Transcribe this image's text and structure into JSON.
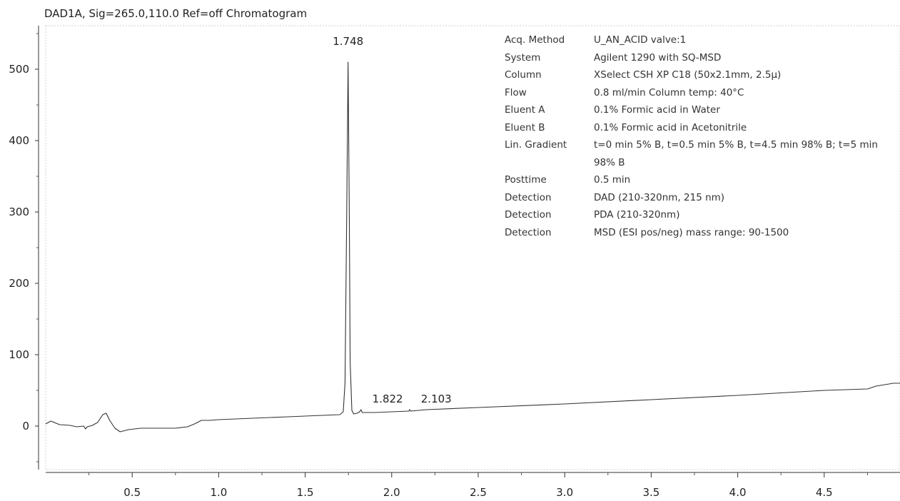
{
  "chart_data": {
    "type": "line",
    "title": "DAD1A, Sig=265.0,110.0  Ref=off Chromatogram",
    "xlabel": "",
    "ylabel": "",
    "xlim": [
      0,
      4.95
    ],
    "ylim": [
      -60,
      560
    ],
    "x_ticks": [
      "0.5",
      "1.0",
      "1.5",
      "2.0",
      "2.5",
      "3.0",
      "3.5",
      "4.0",
      "4.5"
    ],
    "y_ticks": [
      "0",
      "100",
      "200",
      "300",
      "400",
      "500"
    ],
    "peak_labels": [
      "1.748",
      "1.822",
      "2.103"
    ],
    "series": [
      {
        "x": [
          0.0,
          0.03,
          0.08,
          0.14,
          0.18,
          0.22,
          0.23,
          0.24,
          0.27,
          0.3,
          0.33,
          0.35,
          0.37,
          0.4,
          0.43,
          0.48,
          0.55,
          0.65,
          0.75,
          0.82,
          0.86,
          0.9,
          0.95,
          1.0,
          1.2,
          1.4,
          1.6,
          1.7,
          1.72,
          1.73,
          1.74,
          1.748,
          1.755,
          1.76,
          1.77,
          1.78,
          1.8,
          1.815,
          1.822,
          1.83,
          1.85,
          1.9,
          2.0,
          2.1,
          2.103,
          2.11,
          2.2,
          2.5,
          3.0,
          3.5,
          4.0,
          4.5,
          4.75,
          4.8,
          4.85,
          4.9,
          4.95
        ],
        "y": [
          3,
          7,
          2,
          1,
          -1,
          0,
          -4,
          -1,
          1,
          5,
          16,
          18,
          8,
          -3,
          -8,
          -5,
          -3,
          -3,
          -3,
          -1,
          3,
          8,
          8,
          9,
          11,
          13,
          15,
          16,
          20,
          60,
          300,
          510,
          300,
          90,
          22,
          17,
          18,
          20,
          23,
          19,
          19,
          19,
          20,
          21,
          23,
          21,
          23,
          26,
          31,
          37,
          43,
          50,
          52,
          56,
          58,
          60,
          60
        ]
      }
    ]
  },
  "method": [
    {
      "label": "Acq. Method",
      "value": "U_AN_ACID valve:1"
    },
    {
      "label": "System",
      "value": "Agilent 1290 with SQ-MSD"
    },
    {
      "label": "Column",
      "value": "XSelect CSH XP C18 (50x2.1mm, 2.5µ)"
    },
    {
      "label": "Flow",
      "value": "0.8 ml/min Column temp: 40°C"
    },
    {
      "label": "Eluent A",
      "value": "0.1% Formic acid in Water"
    },
    {
      "label": "Eluent B",
      "value": "0.1% Formic acid in Acetonitrile"
    },
    {
      "label": "Lin. Gradient",
      "value": "t=0 min 5% B, t=0.5 min 5% B, t=4.5 min 98% B; t=5 min 98% B"
    },
    {
      "label": "Posttime",
      "value": "0.5 min"
    },
    {
      "label": "Detection",
      "value": "DAD (210-320nm, 215 nm)"
    },
    {
      "label": "Detection",
      "value": "PDA (210-320nm)"
    },
    {
      "label": "Detection",
      "value": "MSD (ESI pos/neg) mass range: 90-1500"
    }
  ]
}
